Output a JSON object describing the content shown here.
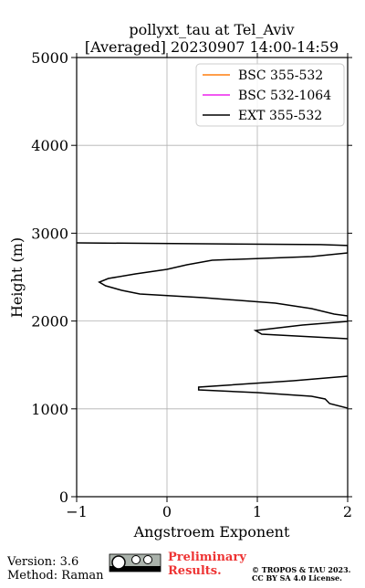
{
  "chart_data": {
    "type": "line",
    "title": "pollyxt_tau at Tel_Aviv",
    "subtitle": "[Averaged] 20230907 14:00-14:59",
    "x_label": "Angstroem Exponent",
    "y_label": "Height (m)",
    "xlim": [
      -1,
      2
    ],
    "xticks": [
      {
        "value": -1,
        "label": "−1"
      },
      0,
      1,
      2
    ],
    "ylim": [
      0,
      5000
    ],
    "yticks": [
      0,
      1000,
      2000,
      3000,
      4000,
      5000
    ],
    "grid": true,
    "legend": "upper right",
    "y": [
      2890,
      2870,
      2860,
      2775,
      2734,
      2692,
      2640,
      2588,
      2536,
      2484,
      2443,
      2401,
      2349,
      2308,
      2266,
      2204,
      2141,
      2079,
      2058,
      1996,
      1954,
      1892,
      1850,
      1798,
      1600,
      1372,
      1320,
      1247,
      1216,
      1185,
      1143,
      1112,
      1060,
      1008
    ],
    "series": [
      {
        "name": "BSC 355-532",
        "color": "#ff7f0e",
        "values": [
          null,
          null,
          null,
          null,
          null,
          null,
          null,
          null,
          null,
          null,
          null,
          null,
          null,
          null,
          null,
          null,
          null,
          null,
          null,
          null,
          null,
          null,
          null,
          null,
          null,
          null,
          null,
          null,
          null,
          null,
          null,
          null,
          null,
          null
        ]
      },
      {
        "name": "BSC 532-1064",
        "color": "#ee22ee",
        "values": [
          null,
          null,
          null,
          null,
          null,
          null,
          null,
          null,
          null,
          null,
          null,
          null,
          null,
          null,
          null,
          null,
          null,
          null,
          null,
          null,
          null,
          null,
          null,
          null,
          null,
          null,
          null,
          null,
          null,
          null,
          null,
          null,
          null,
          null
        ]
      },
      {
        "name": "EXT 355-532",
        "color": "#000000",
        "values": [
          -1.0,
          1.7,
          2.0,
          2.0,
          1.6,
          0.5,
          0.22,
          0.0,
          -0.35,
          -0.65,
          -0.75,
          -0.68,
          -0.5,
          -0.3,
          0.4,
          1.2,
          1.6,
          1.85,
          2.0,
          2.0,
          1.5,
          0.98,
          1.05,
          2.0,
          null,
          2.0,
          1.4,
          0.35,
          0.35,
          1.0,
          1.6,
          1.75,
          1.8,
          2.0
        ]
      }
    ]
  },
  "footer": {
    "version": "Version: 3.6",
    "method": "Method: Raman",
    "status_line1": "Preliminary",
    "status_line2": "Results.",
    "copyright_line1": "© TROPOS & TAU 2023.",
    "copyright_line2": "CC BY SA 4.0 License."
  }
}
